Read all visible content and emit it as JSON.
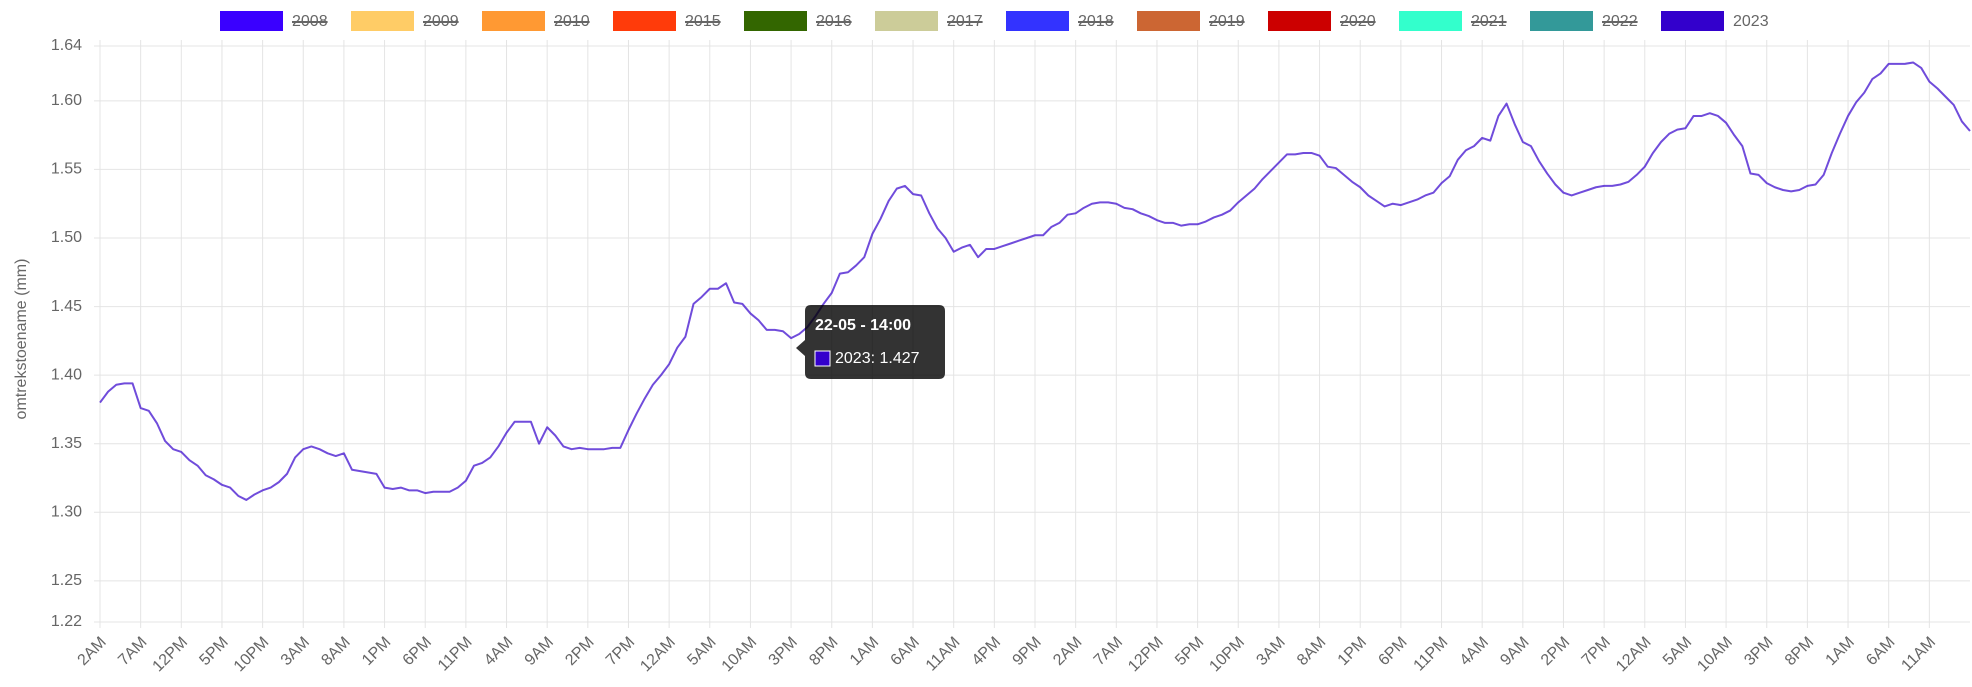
{
  "chart_data": {
    "type": "line",
    "y_label": "omtrekstoename (mm)",
    "ylim": [
      1.22,
      1.64
    ],
    "yticks": [
      1.22,
      1.25,
      {
        "value": 1.3,
        "label": "1.30"
      },
      1.35,
      {
        "value": 1.4,
        "label": "1.40"
      },
      1.45,
      {
        "value": 1.5,
        "label": "1.50"
      },
      1.55,
      {
        "value": 1.6,
        "label": "1.60"
      },
      1.64
    ],
    "grid": true,
    "legend": "top",
    "categories": [
      "2AM",
      null,
      null,
      null,
      null,
      "7AM",
      null,
      null,
      null,
      null,
      "12PM",
      null,
      null,
      null,
      null,
      "5PM",
      null,
      null,
      null,
      null,
      "10PM",
      null,
      null,
      null,
      null,
      "3AM",
      null,
      null,
      null,
      null,
      "8AM",
      null,
      null,
      null,
      null,
      "1PM",
      null,
      null,
      null,
      null,
      "6PM",
      null,
      null,
      null,
      null,
      "11PM",
      null,
      null,
      null,
      null,
      "4AM",
      null,
      null,
      null,
      null,
      "9AM",
      null,
      null,
      null,
      null,
      "2PM",
      null,
      null,
      null,
      null,
      "7PM",
      null,
      null,
      null,
      null,
      "12AM",
      null,
      null,
      null,
      null,
      "5AM",
      null,
      null,
      null,
      null,
      "10AM",
      null,
      null,
      null,
      null,
      "3PM",
      null,
      null,
      null,
      null,
      "8PM",
      null,
      null,
      null,
      null,
      "1AM",
      null,
      null,
      null,
      null,
      "6AM",
      null,
      null,
      null,
      null,
      "11AM",
      null,
      null,
      null,
      null,
      "4PM",
      null,
      null,
      null,
      null,
      "9PM",
      null,
      null,
      null,
      null,
      "2AM",
      null,
      null,
      null,
      null,
      "7AM",
      null,
      null,
      null,
      null,
      "12PM",
      null,
      null,
      null,
      null,
      "5PM",
      null,
      null,
      null,
      null,
      "10PM",
      null,
      null,
      null,
      null,
      "3AM",
      null,
      null,
      null,
      null,
      "8AM",
      null,
      null,
      null,
      null,
      "1PM",
      null,
      null,
      null,
      null,
      "6PM",
      null,
      null,
      null,
      null,
      "11PM",
      null,
      null,
      null,
      null,
      "4AM",
      null,
      null,
      null,
      null,
      "9AM",
      null,
      null,
      null,
      null,
      "2PM",
      null,
      null,
      null,
      null,
      "7PM",
      null,
      null,
      null,
      null,
      "12AM",
      null,
      null,
      null,
      null,
      "5AM",
      null,
      null,
      null,
      null,
      "10AM",
      null,
      null,
      null,
      null,
      "3PM",
      null,
      null,
      null,
      null,
      "8PM",
      null,
      null,
      null,
      null,
      "1AM",
      null,
      null,
      null,
      null,
      "6AM",
      null,
      null,
      null,
      null,
      "11AM",
      null,
      null,
      null,
      null,
      null
    ],
    "series": [
      {
        "name": "2008",
        "color": "#3a00ff",
        "hidden": true
      },
      {
        "name": "2009",
        "color": "#ffcc66",
        "hidden": true
      },
      {
        "name": "2010",
        "color": "#ff9933",
        "hidden": true
      },
      {
        "name": "2015",
        "color": "#ff3b0a",
        "hidden": true
      },
      {
        "name": "2016",
        "color": "#336600",
        "hidden": true
      },
      {
        "name": "2017",
        "color": "#cccc99",
        "hidden": true
      },
      {
        "name": "2018",
        "color": "#3333ff",
        "hidden": true
      },
      {
        "name": "2019",
        "color": "#cc6633",
        "hidden": true
      },
      {
        "name": "2020",
        "color": "#cc0000",
        "hidden": true
      },
      {
        "name": "2021",
        "color": "#33ffcc",
        "hidden": true
      },
      {
        "name": "2022",
        "color": "#339999",
        "hidden": true
      },
      {
        "name": "2023",
        "color": "#3300cc",
        "hidden": false,
        "values": [
          1.38,
          1.388,
          1.393,
          1.394,
          1.394,
          1.376,
          1.374,
          1.365,
          1.352,
          1.346,
          1.344,
          1.338,
          1.334,
          1.327,
          1.324,
          1.32,
          1.318,
          1.312,
          1.309,
          1.313,
          1.316,
          1.318,
          1.322,
          1.328,
          1.34,
          1.346,
          1.348,
          1.346,
          1.343,
          1.341,
          1.343,
          1.331,
          1.33,
          1.329,
          1.328,
          1.318,
          1.317,
          1.318,
          1.316,
          1.316,
          1.314,
          1.315,
          1.315,
          1.315,
          1.318,
          1.323,
          1.334,
          1.336,
          1.34,
          1.348,
          1.358,
          1.366,
          1.366,
          1.366,
          1.35,
          1.362,
          1.356,
          1.348,
          1.346,
          1.347,
          1.346,
          1.346,
          1.346,
          1.347,
          1.347,
          1.36,
          1.372,
          1.383,
          1.393,
          1.4,
          1.408,
          1.42,
          1.428,
          1.452,
          1.457,
          1.463,
          1.463,
          1.467,
          1.453,
          1.452,
          1.445,
          1.44,
          1.433,
          1.433,
          1.432,
          1.427,
          1.43,
          1.435,
          1.443,
          1.452,
          1.46,
          1.474,
          1.475,
          1.48,
          1.486,
          1.503,
          1.514,
          1.527,
          1.536,
          1.538,
          1.532,
          1.531,
          1.518,
          1.507,
          1.5,
          1.49,
          1.493,
          1.495,
          1.486,
          1.492,
          1.492,
          1.494,
          1.496,
          1.498,
          1.5,
          1.502,
          1.502,
          1.508,
          1.511,
          1.517,
          1.518,
          1.522,
          1.525,
          1.526,
          1.526,
          1.525,
          1.522,
          1.521,
          1.518,
          1.516,
          1.513,
          1.511,
          1.511,
          1.509,
          1.51,
          1.51,
          1.512,
          1.515,
          1.517,
          1.52,
          1.526,
          1.531,
          1.536,
          1.543,
          1.549,
          1.555,
          1.561,
          1.561,
          1.562,
          1.562,
          1.56,
          1.552,
          1.551,
          1.546,
          1.541,
          1.537,
          1.531,
          1.527,
          1.523,
          1.525,
          1.524,
          1.526,
          1.528,
          1.531,
          1.533,
          1.54,
          1.545,
          1.557,
          1.564,
          1.567,
          1.573,
          1.571,
          1.589,
          1.598,
          1.583,
          1.57,
          1.567,
          1.556,
          1.547,
          1.539,
          1.533,
          1.531,
          1.533,
          1.535,
          1.537,
          1.538,
          1.538,
          1.539,
          1.541,
          1.546,
          1.552,
          1.562,
          1.57,
          1.576,
          1.579,
          1.58,
          1.589,
          1.589,
          1.591,
          1.589,
          1.584,
          1.575,
          1.567,
          1.547,
          1.546,
          1.54,
          1.537,
          1.535,
          1.534,
          1.535,
          1.538,
          1.539,
          1.546,
          1.562,
          1.576,
          1.589,
          1.599,
          1.606,
          1.616,
          1.62,
          1.627,
          1.627,
          1.627,
          1.628,
          1.624,
          1.614,
          1.609,
          1.603,
          1.597,
          1.585,
          1.578
        ]
      }
    ],
    "tooltip": {
      "title": "22-05 - 14:00",
      "label": "2023: 1.427"
    }
  }
}
